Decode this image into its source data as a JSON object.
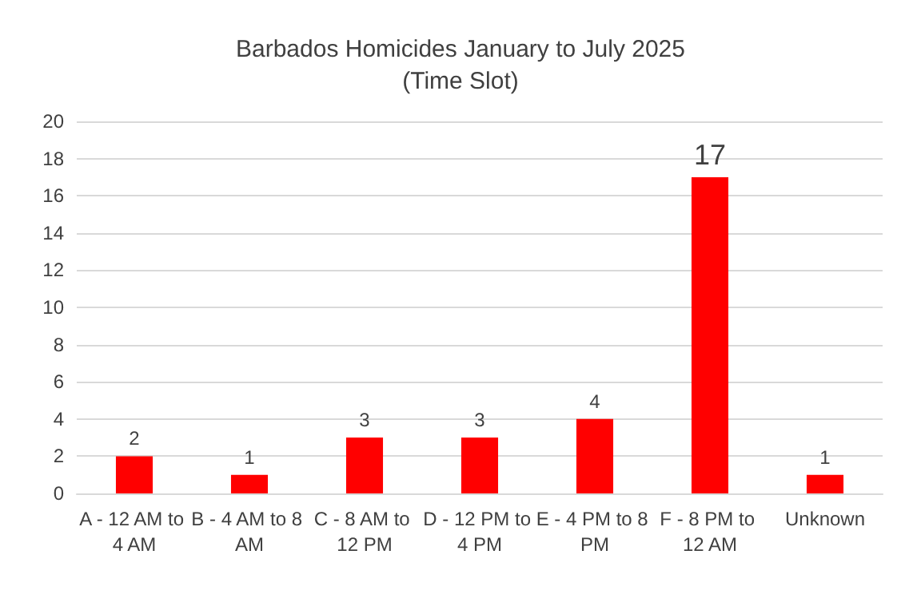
{
  "chart_data": {
    "type": "bar",
    "title": "Barbados Homicides January to July 2025\n(Time Slot)",
    "categories": [
      "A - 12 AM to 4 AM",
      "B - 4 AM to 8 AM",
      "C - 8 AM to 12 PM",
      "D - 12 PM to 4 PM",
      "E - 4 PM to 8 PM",
      "F - 8 PM to 12 AM",
      "Unknown"
    ],
    "values": [
      2,
      1,
      3,
      3,
      4,
      17,
      1
    ],
    "color": "#ff0000",
    "ylim": [
      0,
      20
    ],
    "yticks": [
      0,
      2,
      4,
      6,
      8,
      10,
      12,
      14,
      16,
      18,
      20
    ],
    "grid": "y",
    "data_labels": true
  }
}
